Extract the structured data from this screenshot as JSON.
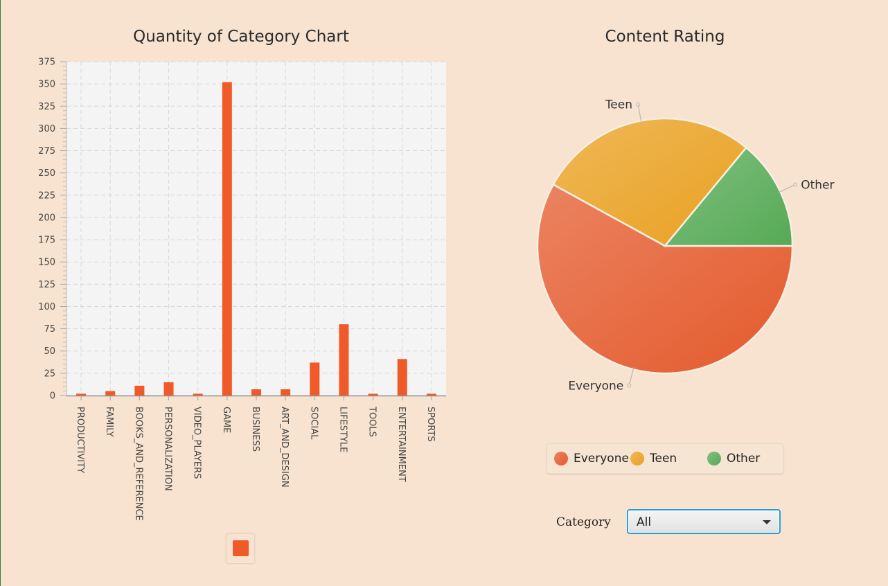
{
  "chart_data": [
    {
      "type": "bar",
      "title": "Quantity of Category Chart",
      "categories": [
        "PRODUCTIVITY",
        "FAMILY",
        "BOOKS_AND_REFERENCE",
        "PERSONALIZATION",
        "VIDEO_PLAYERS",
        "GAME",
        "BUSINESS",
        "ART_AND_DESIGN",
        "SOCIAL",
        "LIFESTYLE",
        "TOOLS",
        "ENTERTAINMENT",
        "SPORTS"
      ],
      "values": [
        2,
        5,
        11,
        15,
        2,
        352,
        7,
        7,
        37,
        80,
        2,
        41,
        2
      ],
      "ylim": [
        0,
        375
      ],
      "yticks": [
        0,
        25,
        50,
        75,
        100,
        125,
        150,
        175,
        200,
        225,
        250,
        275,
        300,
        325,
        350,
        375
      ],
      "grid": true,
      "bar_color": "#f05a28",
      "legend": ""
    },
    {
      "type": "pie",
      "title": "Content Rating",
      "labels": [
        "Everyone",
        "Teen",
        "Other"
      ],
      "values": [
        58,
        28,
        14
      ],
      "colors": [
        "#e45a2c",
        "#e9a020",
        "#55aa55"
      ],
      "legend_position": "bottom"
    }
  ],
  "controls": {
    "category_label": "Category",
    "category_value": "All"
  }
}
